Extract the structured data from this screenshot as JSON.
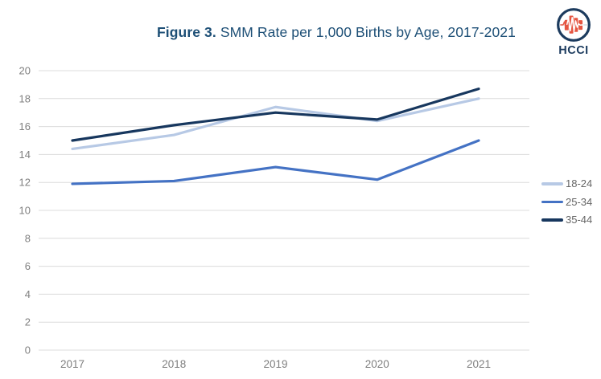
{
  "header": {
    "title_prefix": "Figure 3.",
    "title_rest": " SMM Rate per 1,000 Births by Age, 2017-2021",
    "logo_text": "HCCI"
  },
  "colors": {
    "title": "#1d4f76",
    "gridline": "#dcdcdc",
    "axis_text": "#7f7f7f",
    "legend_text": "#666666",
    "logo_navy": "#1c3b5e",
    "logo_red": "#e55541",
    "background": "#ffffff"
  },
  "chart_data": {
    "type": "line",
    "title": "Figure 3. SMM Rate per 1,000 Births by Age, 2017-2021",
    "xlabel": "",
    "ylabel": "",
    "categories": [
      "2017",
      "2018",
      "2019",
      "2020",
      "2021"
    ],
    "series": [
      {
        "name": "18-24",
        "color": "#b7c9e5",
        "values": [
          14.4,
          15.4,
          17.4,
          16.4,
          18.0
        ]
      },
      {
        "name": "25-34",
        "color": "#4472c4",
        "values": [
          11.9,
          12.1,
          13.1,
          12.2,
          15.0
        ]
      },
      {
        "name": "35-44",
        "color": "#17375e",
        "values": [
          15.0,
          16.1,
          17.0,
          16.5,
          18.7
        ]
      }
    ],
    "ylim": [
      0,
      20
    ],
    "yticks": [
      0,
      2,
      4,
      6,
      8,
      10,
      12,
      14,
      16,
      18,
      20
    ],
    "grid": true,
    "legend_position": "right"
  }
}
